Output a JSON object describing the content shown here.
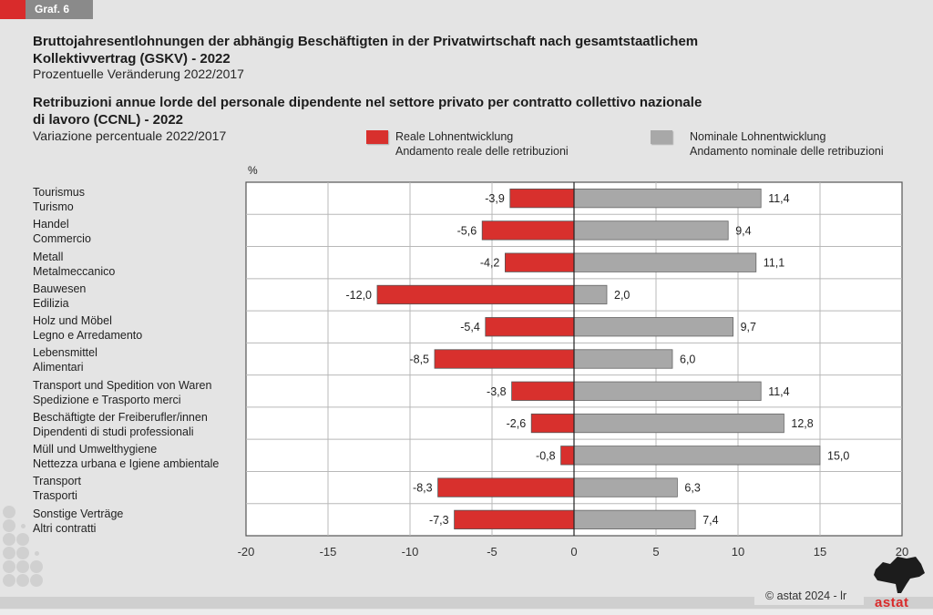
{
  "header": {
    "graf_label": "Graf. 6",
    "title_de_line1": "Bruttojahresentlohnungen der abhängig Beschäftigten in der Privatwirtschaft nach gesamtstaatlichem",
    "title_de_line2": "Kollektivvertrag (GSKV) - 2022",
    "subtitle_de": "Prozentuelle Veränderung 2022/2017",
    "title_it_line1": "Retribuzioni annue lorde del personale dipendente nel settore privato per contratto collettivo nazionale",
    "title_it_line2": "di lavoro (CCNL) - 2022",
    "subtitle_it": "Variazione percentuale 2022/2017"
  },
  "colors": {
    "accent_red": "#d92b2b",
    "real_bar": "#d8302d",
    "nominal_bar": "#a8a8a8",
    "header_grey": "#8a8a8a"
  },
  "footer": {
    "copyright": "© astat 2024 - lr",
    "logo_text": "astat"
  },
  "chart_data": {
    "type": "bar",
    "orientation": "horizontal",
    "title": "Bruttojahresentlohnungen der abhängig Beschäftigten in der Privatwirtschaft nach gesamtstaatlichem Kollektivvertrag (GSKV) - 2022 / Retribuzioni annue lorde del personale dipendente nel settore privato per contratto collettivo nazionale di lavoro (CCNL) - 2022",
    "subtitle": "Prozentuelle Veränderung 2022/2017 / Variazione percentuale 2022/2017",
    "xlabel": "%",
    "ylabel": "",
    "xlim": [
      -20,
      20
    ],
    "xticks": [
      -20,
      -15,
      -10,
      -5,
      0,
      5,
      10,
      15,
      20
    ],
    "xtick_labels": [
      "-20",
      "-15",
      "-10",
      "-5",
      "0",
      "5",
      "10",
      "15",
      "20"
    ],
    "grid": true,
    "legend_placement": "top-right",
    "categories": [
      {
        "de": "Tourismus",
        "it": "Turismo"
      },
      {
        "de": "Handel",
        "it": "Commercio"
      },
      {
        "de": "Metall",
        "it": "Metalmeccanico"
      },
      {
        "de": "Bauwesen",
        "it": "Edilizia"
      },
      {
        "de": "Holz und Möbel",
        "it": "Legno e Arredamento"
      },
      {
        "de": "Lebensmittel",
        "it": "Alimentari"
      },
      {
        "de": "Transport und Spedition von Waren",
        "it": "Spedizione e Trasporto merci"
      },
      {
        "de": "Beschäftigte der Freiberufler/innen",
        "it": "Dipendenti di studi professionali"
      },
      {
        "de": "Müll und Umwelthygiene",
        "it": "Nettezza urbana e Igiene ambientale"
      },
      {
        "de": "Transport",
        "it": "Trasporti"
      },
      {
        "de": "Sonstige Verträge",
        "it": "Altri contratti"
      }
    ],
    "series": [
      {
        "name_de": "Reale Lohnentwicklung",
        "name_it": "Andamento reale delle retribuzioni",
        "color": "#d8302d",
        "values": [
          -3.9,
          -5.6,
          -4.2,
          -12.0,
          -5.4,
          -8.5,
          -3.8,
          -2.6,
          -0.8,
          -8.3,
          -7.3
        ],
        "labels": [
          "-3,9",
          "-5,6",
          "-4,2",
          "-12,0",
          "-5,4",
          "-8,5",
          "-3,8",
          "-2,6",
          "-0,8",
          "-8,3",
          "-7,3"
        ]
      },
      {
        "name_de": "Nominale Lohnentwicklung",
        "name_it": "Andamento nominale delle retribuzioni",
        "color": "#a8a8a8",
        "values": [
          11.4,
          9.4,
          11.1,
          2.0,
          9.7,
          6.0,
          11.4,
          12.8,
          15.0,
          6.3,
          7.4
        ],
        "labels": [
          "11,4",
          "9,4",
          "11,1",
          "2,0",
          "9,7",
          "6,0",
          "11,4",
          "12,8",
          "15,0",
          "6,3",
          "7,4"
        ]
      }
    ]
  }
}
